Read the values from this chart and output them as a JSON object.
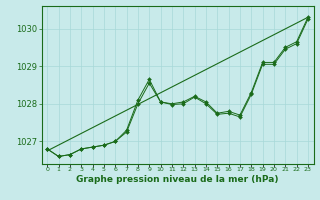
{
  "background_color": "#c8eaea",
  "grid_color": "#a8d8d8",
  "line_color": "#1a6b1a",
  "marker_color": "#1a6b1a",
  "xlabel": "Graphe pression niveau de la mer (hPa)",
  "xlabel_fontsize": 6.5,
  "ylabel_fontsize": 6,
  "ylim": [
    1026.4,
    1030.6
  ],
  "xlim": [
    -0.5,
    23.5
  ],
  "yticks": [
    1027,
    1028,
    1029,
    1030
  ],
  "xticks": [
    0,
    1,
    2,
    3,
    4,
    5,
    6,
    7,
    8,
    9,
    10,
    11,
    12,
    13,
    14,
    15,
    16,
    17,
    18,
    19,
    20,
    21,
    22,
    23
  ],
  "series_jagged1": {
    "x": [
      0,
      1,
      2,
      3,
      4,
      5,
      6,
      7,
      8,
      9,
      10,
      11,
      12,
      13,
      14,
      15,
      16,
      17,
      18,
      19,
      20,
      21,
      22,
      23
    ],
    "y": [
      1026.8,
      1026.6,
      1026.65,
      1026.8,
      1026.85,
      1026.9,
      1027.0,
      1027.3,
      1028.1,
      1028.65,
      1028.05,
      1028.0,
      1028.05,
      1028.2,
      1028.05,
      1027.75,
      1027.8,
      1027.7,
      1028.3,
      1029.1,
      1029.1,
      1029.5,
      1029.65,
      1030.3
    ]
  },
  "series_jagged2": {
    "x": [
      0,
      1,
      2,
      3,
      4,
      5,
      6,
      7,
      8,
      9,
      10,
      11,
      12,
      13,
      14,
      15,
      16,
      17,
      18,
      19,
      20,
      21,
      22,
      23
    ],
    "y": [
      1026.8,
      1026.6,
      1026.65,
      1026.8,
      1026.85,
      1026.9,
      1027.0,
      1027.25,
      1028.0,
      1028.55,
      1028.05,
      1027.98,
      1028.0,
      1028.18,
      1028.0,
      1027.72,
      1027.75,
      1027.65,
      1028.25,
      1029.05,
      1029.05,
      1029.45,
      1029.6,
      1030.25
    ]
  },
  "series_straight": {
    "x": [
      0,
      23
    ],
    "y": [
      1026.75,
      1030.3
    ]
  }
}
